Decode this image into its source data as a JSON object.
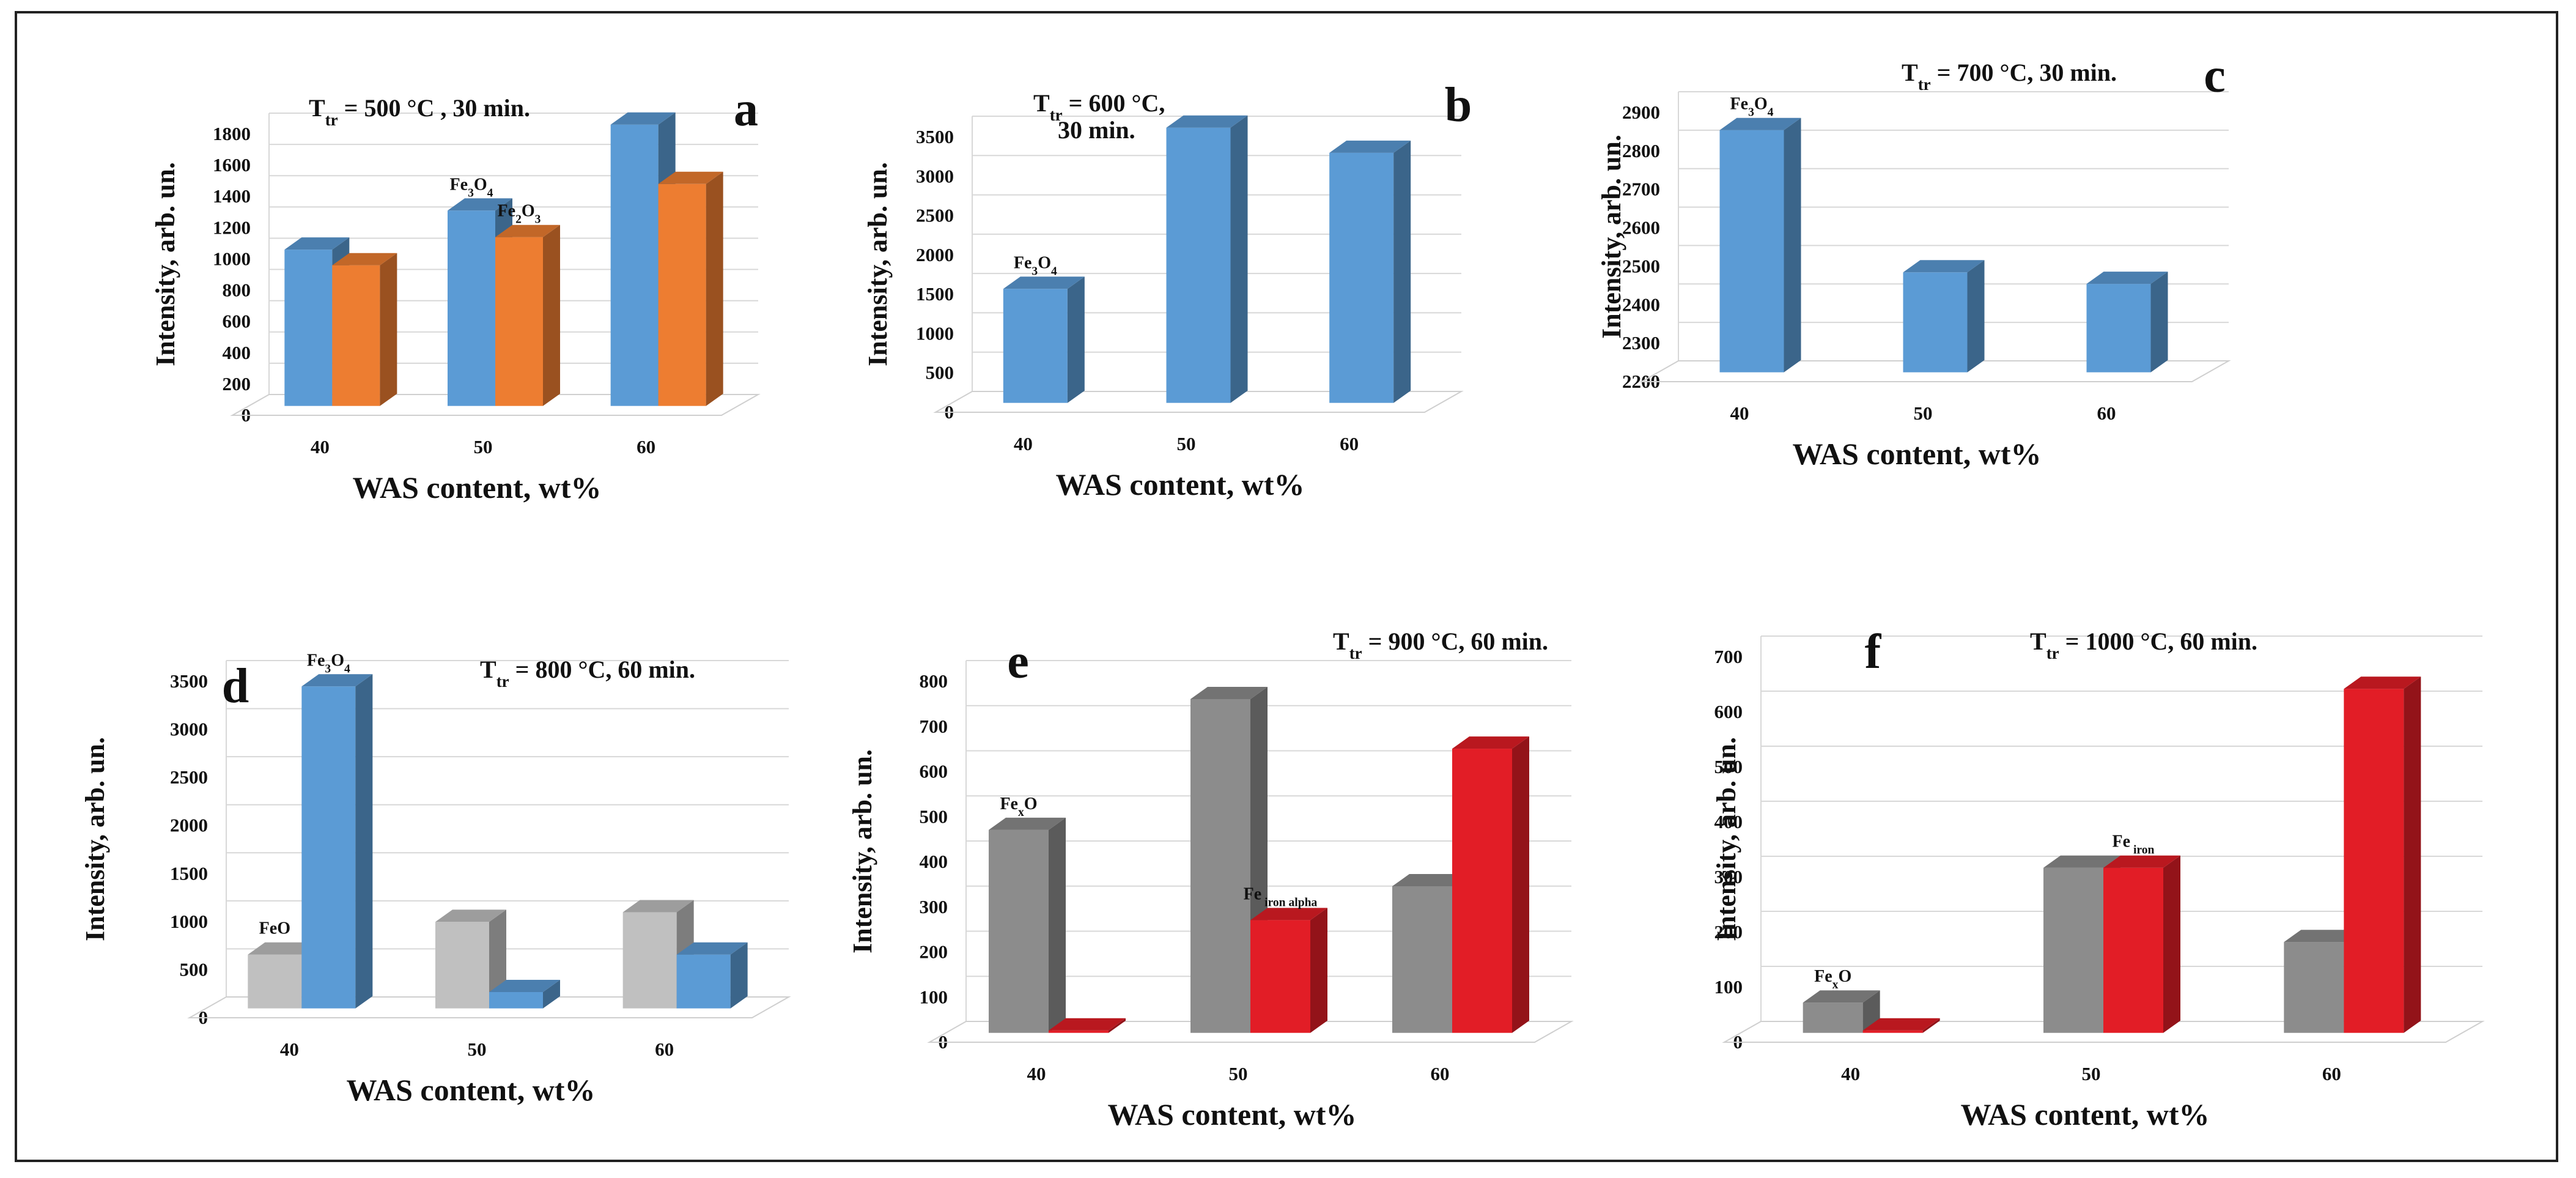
{
  "colors": {
    "blue": "#5b9bd5",
    "orange": "#ed7d31",
    "gray": "#8c8c8c",
    "light_gray": "#c0c0c0",
    "red": "#e21d26"
  },
  "chart_data": [
    {
      "panel": "a",
      "type": "bar",
      "condition": {
        "prefix": "T",
        "sub": "tr",
        "rest": " = 500 °C , 30 min."
      },
      "xlabel": "WAS content, wt%",
      "ylabel": "Intensity, arb. un.",
      "categories": [
        "40",
        "50",
        "60"
      ],
      "ylim": [
        0,
        1800
      ],
      "yticks": [
        0,
        200,
        400,
        600,
        800,
        1000,
        1200,
        1400,
        1600,
        1800
      ],
      "series": [
        {
          "name": "Fe3O4",
          "color": "#5b9bd5",
          "values": [
            1000,
            1250,
            1800
          ]
        },
        {
          "name": "Fe2O3",
          "color": "#ed7d31",
          "values": [
            900,
            1080,
            1420
          ]
        }
      ],
      "annotations": [
        {
          "cat": 1,
          "series": 0,
          "base": "Fe",
          "sub": "3",
          "base2": "O",
          "sub2": "4"
        },
        {
          "cat": 1,
          "series": 1,
          "base": "Fe",
          "sub": "2",
          "base2": "O",
          "sub2": "3"
        }
      ]
    },
    {
      "panel": "b",
      "type": "bar",
      "condition": {
        "prefix": "T",
        "sub": "tr",
        "rest": " = 600 °C,",
        "line2": "30 min."
      },
      "xlabel": "WAS content, wt%",
      "ylabel": "Intensity, arb. un.",
      "categories": [
        "40",
        "50",
        "60"
      ],
      "ylim": [
        0,
        3500
      ],
      "yticks": [
        0,
        500,
        1000,
        1500,
        2000,
        2500,
        3000,
        3500
      ],
      "series": [
        {
          "name": "Fe3O4",
          "color": "#5b9bd5",
          "values": [
            1450,
            3500,
            3180
          ]
        }
      ],
      "annotations": [
        {
          "cat": 0,
          "series": 0,
          "base": "Fe",
          "sub": "3",
          "base2": "O",
          "sub2": "4"
        }
      ]
    },
    {
      "panel": "c",
      "type": "bar",
      "condition": {
        "prefix": "T",
        "sub": "tr",
        "rest": " = 700 °C, 30 min."
      },
      "xlabel": "WAS content, wt%",
      "ylabel": "Intensity, arb. un.",
      "categories": [
        "40",
        "50",
        "60"
      ],
      "ylim": [
        2200,
        2900
      ],
      "yticks": [
        2200,
        2300,
        2400,
        2500,
        2600,
        2700,
        2800,
        2900
      ],
      "series": [
        {
          "name": "Fe3O4",
          "color": "#5b9bd5",
          "values": [
            2830,
            2460,
            2430
          ]
        }
      ],
      "annotations": [
        {
          "cat": 0,
          "series": 0,
          "base": "Fe",
          "sub": "3",
          "base2": "O",
          "sub2": "4"
        }
      ]
    },
    {
      "panel": "d",
      "type": "bar",
      "condition": {
        "prefix": "T",
        "sub": "tr",
        "rest": " = 800 °C, 60 min."
      },
      "xlabel": "WAS content, wt%",
      "ylabel": "Intensity, arb. un.",
      "categories": [
        "40",
        "50",
        "60"
      ],
      "ylim": [
        0,
        3500
      ],
      "yticks": [
        0,
        500,
        1000,
        1500,
        2000,
        2500,
        3000,
        3500
      ],
      "series": [
        {
          "name": "FeO",
          "color": "#c0c0c0",
          "values": [
            560,
            900,
            1000
          ]
        },
        {
          "name": "Fe3O4",
          "color": "#5b9bd5",
          "values": [
            3350,
            170,
            560
          ]
        }
      ],
      "annotations": [
        {
          "cat": 0,
          "series": 0,
          "base": "FeO",
          "sub": "",
          "base2": "",
          "sub2": ""
        },
        {
          "cat": 0,
          "series": 1,
          "base": "Fe",
          "sub": "3",
          "base2": "O",
          "sub2": "4"
        }
      ]
    },
    {
      "panel": "e",
      "type": "bar",
      "condition": {
        "prefix": "T",
        "sub": "tr",
        "rest": " = 900 °C, 60 min."
      },
      "xlabel": "WAS content, wt%",
      "ylabel": "Intensity, arb. un.",
      "categories": [
        "40",
        "50",
        "60"
      ],
      "ylim": [
        0,
        800
      ],
      "yticks": [
        0,
        100,
        200,
        300,
        400,
        500,
        600,
        700,
        800
      ],
      "series": [
        {
          "name": "FexO",
          "color": "#8c8c8c",
          "values": [
            450,
            740,
            325
          ]
        },
        {
          "name": "Fe iron alpha",
          "color": "#e21d26",
          "values": [
            0,
            250,
            630
          ]
        }
      ],
      "annotations": [
        {
          "cat": 0,
          "series": 0,
          "base": "Fe",
          "sub": "x",
          "base2": "O",
          "sub2": ""
        },
        {
          "cat": 1,
          "series": 1,
          "base": "Fe",
          "sub": " iron alpha",
          "base2": "",
          "sub2": ""
        }
      ]
    },
    {
      "panel": "f",
      "type": "bar",
      "condition": {
        "prefix": "T",
        "sub": "tr",
        "rest": " = 1000 °C, 60 min."
      },
      "xlabel": "WAS content, wt%",
      "ylabel": "Intensity, arb. un.",
      "categories": [
        "40",
        "50",
        "60"
      ],
      "ylim": [
        0,
        700
      ],
      "yticks": [
        0,
        100,
        200,
        300,
        400,
        500,
        600,
        700
      ],
      "series": [
        {
          "name": "FexO",
          "color": "#8c8c8c",
          "values": [
            55,
            300,
            165
          ]
        },
        {
          "name": "Fe iron",
          "color": "#e21d26",
          "values": [
            0,
            300,
            625
          ]
        }
      ],
      "annotations": [
        {
          "cat": 0,
          "series": 0,
          "base": "Fe",
          "sub": "x",
          "base2": "O",
          "sub2": ""
        },
        {
          "cat": 1,
          "series": 1,
          "base": "Fe",
          "sub": " iron",
          "base2": "",
          "sub2": ""
        }
      ]
    }
  ]
}
